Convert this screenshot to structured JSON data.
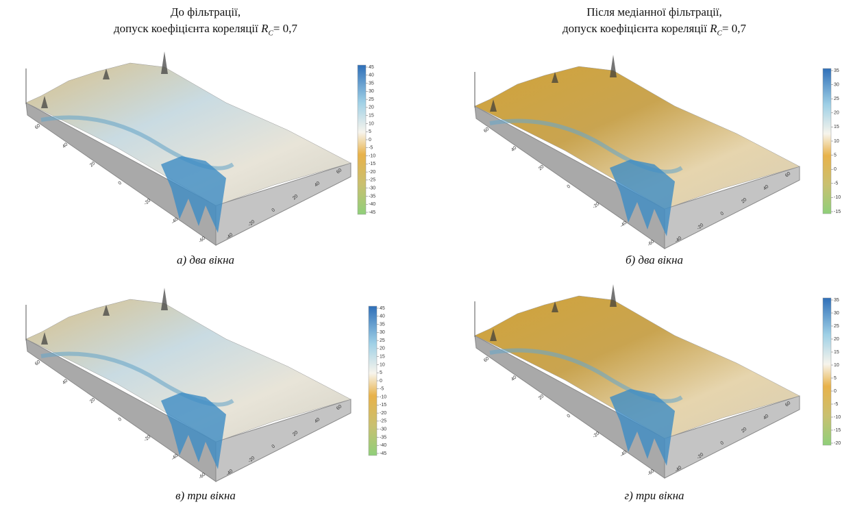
{
  "headers": [
    {
      "line1": "До фільтрації,",
      "line2": "допуск коефіцієнта кореляції ",
      "symbol": "R",
      "subscript": "C",
      "suffix": "= 0,7"
    },
    {
      "line1": "Після медіанної фільтрації,",
      "line2": "допуск коефіцієнта кореляції ",
      "symbol": "R",
      "subscript": "C",
      "suffix": "= 0,7"
    }
  ],
  "panels": [
    {
      "caption": "а) два вікна",
      "colorbar": [
        "45",
        "40",
        "35",
        "30",
        "25",
        "20",
        "15",
        "10",
        "5",
        "0",
        "-5",
        "-10",
        "-15",
        "-20",
        "-25",
        "-30",
        "-35",
        "-40",
        "-45"
      ],
      "axis_left": [
        "60",
        "40",
        "20",
        "0",
        "-20",
        "-40",
        "-60"
      ],
      "axis_right": [
        "60",
        "40",
        "20",
        "0",
        "-20",
        "-40"
      ]
    },
    {
      "caption": "б) два вікна",
      "colorbar": [
        "35",
        "30",
        "25",
        "20",
        "15",
        "10",
        "5",
        "0",
        "-5",
        "-10",
        "-15"
      ],
      "axis_left": [
        "60",
        "40",
        "20",
        "0",
        "-20",
        "-40",
        "-60"
      ],
      "axis_right": [
        "60",
        "40",
        "20",
        "0",
        "-20",
        "-40"
      ]
    },
    {
      "caption": "в) три вікна",
      "colorbar": [
        "45",
        "40",
        "35",
        "30",
        "25",
        "20",
        "15",
        "10",
        "5",
        "0",
        "-5",
        "-10",
        "-15",
        "-20",
        "-25",
        "-30",
        "-35",
        "-40",
        "-45"
      ],
      "axis_left": [
        "60",
        "40",
        "20",
        "0",
        "-20",
        "-40",
        "-60"
      ],
      "axis_right": [
        "60",
        "40",
        "20",
        "0",
        "-20",
        "-40"
      ]
    },
    {
      "caption": "г) три вікна",
      "colorbar": [
        "35",
        "30",
        "25",
        "20",
        "15",
        "10",
        "5",
        "0",
        "-5",
        "-10",
        "-15",
        "-20"
      ],
      "axis_left": [
        "60",
        "40",
        "20",
        "0",
        "-20",
        "-40",
        "-60"
      ],
      "axis_right": [
        "60",
        "40",
        "20",
        "0",
        "-20",
        "-40"
      ]
    }
  ]
}
